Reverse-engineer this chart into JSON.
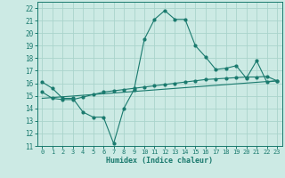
{
  "title": "",
  "xlabel": "Humidex (Indice chaleur)",
  "ylabel": "",
  "background_color": "#cceae4",
  "grid_color": "#aad4cc",
  "line_color": "#1a7a6e",
  "x_ticks": [
    0,
    1,
    2,
    3,
    4,
    5,
    6,
    7,
    8,
    9,
    10,
    11,
    12,
    13,
    14,
    15,
    16,
    17,
    18,
    19,
    20,
    21,
    22,
    23
  ],
  "y_ticks": [
    11,
    12,
    13,
    14,
    15,
    16,
    17,
    18,
    19,
    20,
    21,
    22
  ],
  "xlim": [
    -0.5,
    23.5
  ],
  "ylim": [
    11,
    22.5
  ],
  "curve1_x": [
    0,
    1,
    2,
    3,
    4,
    5,
    6,
    7,
    8,
    9,
    10,
    11,
    12,
    13,
    14,
    15,
    16,
    17,
    18,
    19,
    20,
    21,
    22,
    23
  ],
  "curve1_y": [
    16.1,
    15.6,
    14.8,
    14.8,
    13.7,
    13.3,
    13.3,
    11.2,
    14.0,
    15.5,
    19.5,
    21.1,
    21.8,
    21.1,
    21.1,
    19.0,
    18.1,
    17.1,
    17.2,
    17.4,
    16.4,
    17.8,
    16.1,
    16.2
  ],
  "curve2_x": [
    0,
    1,
    2,
    3,
    4,
    5,
    6,
    7,
    8,
    9,
    10,
    11,
    12,
    13,
    14,
    15,
    16,
    17,
    18,
    19,
    20,
    21,
    22,
    23
  ],
  "curve2_y": [
    15.3,
    14.8,
    14.7,
    14.7,
    14.9,
    15.1,
    15.3,
    15.4,
    15.5,
    15.6,
    15.7,
    15.8,
    15.9,
    16.0,
    16.1,
    16.2,
    16.3,
    16.35,
    16.4,
    16.45,
    16.5,
    16.5,
    16.55,
    16.2
  ],
  "curve3_x": [
    0,
    23
  ],
  "curve3_y": [
    14.8,
    16.2
  ]
}
